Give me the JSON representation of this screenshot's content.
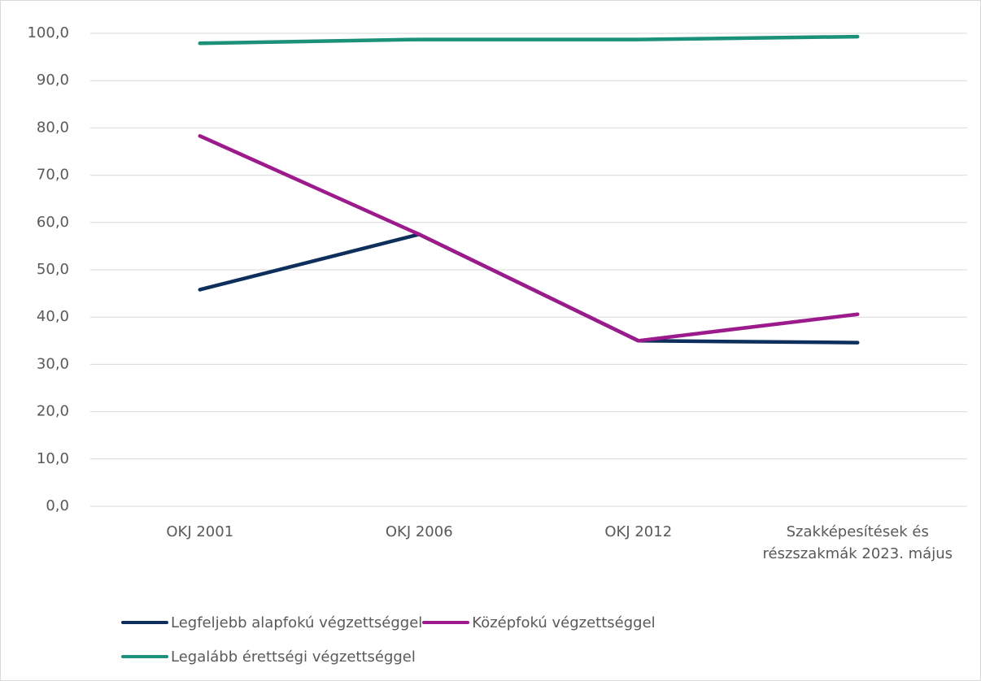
{
  "chart_data": {
    "type": "line",
    "categories": [
      "OKJ 2001",
      "OKJ 2006",
      "OKJ 2012",
      "Szakképesítések és részszakmák 2023. május"
    ],
    "series": [
      {
        "name": "Legfeljebb alapfokú végzettséggel",
        "color": "#0e2f5c",
        "values": [
          45.8,
          57.5,
          35.0,
          34.6
        ]
      },
      {
        "name": "Középfokú végzettséggel",
        "color": "#9c1a8c",
        "values": [
          78.3,
          57.5,
          35.0,
          40.6
        ]
      },
      {
        "name": "Legalább érettségi végzettséggel",
        "color": "#1a9178",
        "values": [
          97.9,
          98.7,
          98.7,
          99.3
        ]
      }
    ],
    "ylim": [
      0,
      100
    ],
    "yticks": [
      {
        "value": 0,
        "label": "0,0"
      },
      {
        "value": 10,
        "label": "10,0"
      },
      {
        "value": 20,
        "label": "20,0"
      },
      {
        "value": 30,
        "label": "30,0"
      },
      {
        "value": 40,
        "label": "40,0"
      },
      {
        "value": 50,
        "label": "50,0"
      },
      {
        "value": 60,
        "label": "60,0"
      },
      {
        "value": 70,
        "label": "70,0"
      },
      {
        "value": 80,
        "label": "80,0"
      },
      {
        "value": 90,
        "label": "90,0"
      },
      {
        "value": 100,
        "label": "100,0"
      }
    ],
    "grid": true,
    "legend": "bottom"
  }
}
